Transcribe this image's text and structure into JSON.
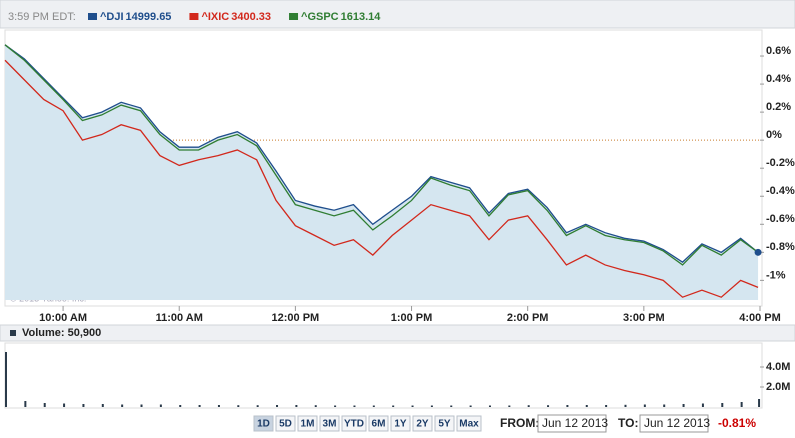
{
  "chart_data": [
    {
      "type": "line",
      "time_label": "3:59 PM EDT:",
      "copyright": "© 2013 Yahoo! Inc.",
      "x": [
        570,
        580,
        590,
        600,
        610,
        620,
        630,
        640,
        650,
        660,
        670,
        680,
        690,
        700,
        710,
        720,
        730,
        740,
        750,
        760,
        770,
        780,
        790,
        800,
        810,
        820,
        830,
        840,
        850,
        860,
        870,
        880,
        890,
        900,
        910,
        920,
        930,
        940,
        950,
        959
      ],
      "xlim": [
        570,
        960
      ],
      "xticks": [
        {
          "value": 600,
          "label": "10:00 AM"
        },
        {
          "value": 660,
          "label": "11:00 AM"
        },
        {
          "value": 720,
          "label": "12:00 PM"
        },
        {
          "value": 780,
          "label": "1:00 PM"
        },
        {
          "value": 840,
          "label": "2:00 PM"
        },
        {
          "value": 900,
          "label": "3:00 PM"
        },
        {
          "value": 960,
          "label": "4:00 PM"
        }
      ],
      "ylim": [
        -1.14,
        0.75
      ],
      "yticks": [
        {
          "value": 0.6,
          "label": "0.6%"
        },
        {
          "value": 0.4,
          "label": "0.4%"
        },
        {
          "value": 0.2,
          "label": "0.2%"
        },
        {
          "value": 0,
          "label": "0%"
        },
        {
          "value": -0.2,
          "label": "-0.2%"
        },
        {
          "value": -0.4,
          "label": "-0.4%"
        },
        {
          "value": -0.6,
          "label": "-0.6%"
        },
        {
          "value": -0.8,
          "label": "-0.8%"
        },
        {
          "value": -1,
          "label": "-1%"
        }
      ],
      "zero_line": true,
      "series": [
        {
          "name": "^DJI",
          "last": 14999.65,
          "color": "#1f4e8c",
          "area": "#d5e6f0",
          "values": [
            0.68,
            0.58,
            0.44,
            0.3,
            0.16,
            0.2,
            0.27,
            0.23,
            0.06,
            -0.05,
            -0.05,
            0.02,
            0.06,
            -0.02,
            -0.22,
            -0.43,
            -0.47,
            -0.5,
            -0.46,
            -0.6,
            -0.5,
            -0.4,
            -0.26,
            -0.3,
            -0.34,
            -0.52,
            -0.38,
            -0.35,
            -0.48,
            -0.66,
            -0.6,
            -0.66,
            -0.7,
            -0.72,
            -0.78,
            -0.87,
            -0.74,
            -0.8,
            -0.7,
            -0.8
          ]
        },
        {
          "name": "^IXIC",
          "last": 3400.33,
          "color": "#d2281c",
          "values": [
            0.57,
            0.43,
            0.29,
            0.21,
            0.0,
            0.04,
            0.11,
            0.07,
            -0.11,
            -0.18,
            -0.14,
            -0.11,
            -0.07,
            -0.14,
            -0.43,
            -0.61,
            -0.68,
            -0.75,
            -0.71,
            -0.82,
            -0.68,
            -0.57,
            -0.46,
            -0.5,
            -0.54,
            -0.71,
            -0.57,
            -0.54,
            -0.71,
            -0.89,
            -0.82,
            -0.89,
            -0.93,
            -0.96,
            -1.0,
            -1.12,
            -1.07,
            -1.12,
            -1.0,
            -1.05
          ]
        },
        {
          "name": "^GSPC",
          "last": 1613.14,
          "color": "#2f7d32",
          "values": [
            0.68,
            0.57,
            0.43,
            0.29,
            0.14,
            0.18,
            0.25,
            0.21,
            0.04,
            -0.07,
            -0.07,
            0,
            0.04,
            -0.04,
            -0.25,
            -0.46,
            -0.5,
            -0.54,
            -0.5,
            -0.64,
            -0.54,
            -0.43,
            -0.27,
            -0.32,
            -0.36,
            -0.54,
            -0.39,
            -0.36,
            -0.5,
            -0.68,
            -0.61,
            -0.68,
            -0.71,
            -0.73,
            -0.79,
            -0.89,
            -0.75,
            -0.82,
            -0.71,
            -0.8
          ]
        }
      ]
    },
    {
      "type": "bar",
      "header": "Volume: 50,900",
      "color": "#2a3a4a",
      "x": [
        570,
        580,
        590,
        600,
        610,
        620,
        630,
        640,
        650,
        660,
        670,
        680,
        690,
        700,
        710,
        720,
        730,
        740,
        750,
        760,
        770,
        780,
        790,
        800,
        810,
        820,
        830,
        840,
        850,
        860,
        870,
        880,
        890,
        900,
        910,
        920,
        930,
        940,
        950,
        959
      ],
      "xlim": [
        570,
        960
      ],
      "values": [
        5500000,
        600000,
        400000,
        350000,
        300000,
        300000,
        250000,
        250000,
        250000,
        200000,
        200000,
        200000,
        180000,
        180000,
        200000,
        200000,
        180000,
        150000,
        150000,
        150000,
        150000,
        150000,
        150000,
        150000,
        150000,
        150000,
        150000,
        180000,
        180000,
        200000,
        200000,
        200000,
        220000,
        250000,
        250000,
        300000,
        350000,
        400000,
        500000,
        800000
      ],
      "ylim": [
        0,
        6200000
      ],
      "yticks": [
        {
          "value": 4000000,
          "label": "4.0M"
        },
        {
          "value": 2000000,
          "label": "2.0M"
        }
      ]
    }
  ],
  "controls": {
    "ranges": [
      "1D",
      "5D",
      "1M",
      "3M",
      "YTD",
      "6M",
      "1Y",
      "2Y",
      "5Y",
      "Max"
    ],
    "from_label": "FROM:",
    "from": "Jun 12 2013",
    "to_label": "TO:",
    "to": "Jun 12 2013",
    "change": "-0.81%"
  }
}
